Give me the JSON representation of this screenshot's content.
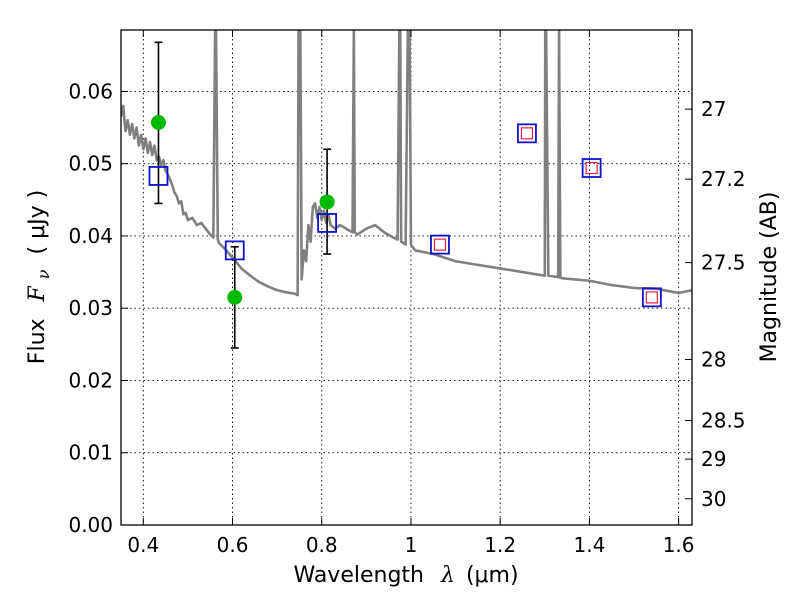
{
  "colors": {
    "model_line": "#808080",
    "model_square": "#1010cc",
    "photometry_square": "#1010cc",
    "photometry_inner": "#dd2244",
    "observed_point": "#00bb00",
    "error_bar": "#000000",
    "grid": "#000000"
  },
  "chart_data": {
    "type": "line",
    "xlabel": "Wavelength",
    "xlabel_symbol": "λ",
    "xlabel_unit": "(μm)",
    "ylabel": "Flux",
    "ylabel_symbol": "F",
    "ylabel_subscript": "ν",
    "ylabel_unit": "( μJy )",
    "y2label": "Magnitude (AB)",
    "xlim": [
      0.35,
      1.63
    ],
    "ylim": [
      0.0,
      0.0685
    ],
    "grid": true,
    "x_ticks": [
      {
        "value": 0.4,
        "label": "0.4"
      },
      {
        "value": 0.6,
        "label": "0.6"
      },
      {
        "value": 0.8,
        "label": "0.8"
      },
      {
        "value": 1.0,
        "label": "1"
      },
      {
        "value": 1.2,
        "label": "1.2"
      },
      {
        "value": 1.4,
        "label": "1.4"
      },
      {
        "value": 1.6,
        "label": "1.6"
      }
    ],
    "y_ticks": [
      {
        "value": 0.0,
        "label": "0.00"
      },
      {
        "value": 0.01,
        "label": "0.01"
      },
      {
        "value": 0.02,
        "label": "0.02"
      },
      {
        "value": 0.03,
        "label": "0.03"
      },
      {
        "value": 0.04,
        "label": "0.04"
      },
      {
        "value": 0.05,
        "label": "0.05"
      },
      {
        "value": 0.06,
        "label": "0.06"
      }
    ],
    "y2_ticks": [
      {
        "value": 27,
        "label": "27"
      },
      {
        "value": 27.2,
        "label": "27.2"
      },
      {
        "value": 27.5,
        "label": "27.5"
      },
      {
        "value": 28,
        "label": "28"
      },
      {
        "value": 28.5,
        "label": "28.5"
      },
      {
        "value": 29,
        "label": "29"
      },
      {
        "value": 30,
        "label": "30"
      }
    ],
    "series": [
      {
        "type": "line",
        "x": [
          0.35,
          0.355,
          0.36,
          0.365,
          0.37,
          0.375,
          0.38,
          0.385,
          0.39,
          0.395,
          0.4,
          0.405,
          0.41,
          0.415,
          0.42,
          0.425,
          0.43,
          0.435,
          0.44,
          0.445,
          0.45,
          0.455,
          0.46,
          0.465,
          0.47,
          0.475,
          0.48,
          0.485,
          0.49,
          0.495,
          0.5,
          0.51,
          0.52,
          0.53,
          0.54,
          0.55,
          0.557,
          0.561,
          0.562,
          0.563,
          0.567,
          0.57,
          0.58,
          0.6,
          0.62,
          0.64,
          0.66,
          0.68,
          0.7,
          0.72,
          0.74,
          0.746,
          0.748,
          0.75,
          0.752,
          0.755,
          0.76,
          0.765,
          0.77,
          0.775,
          0.78,
          0.785,
          0.79,
          0.795,
          0.8,
          0.805,
          0.81,
          0.815,
          0.82,
          0.83,
          0.84,
          0.85,
          0.86,
          0.869,
          0.872,
          0.874,
          0.88,
          0.9,
          0.92,
          0.94,
          0.96,
          0.97,
          0.974,
          0.976,
          0.978,
          0.984,
          0.988,
          0.993,
          0.995,
          0.997,
          1.0,
          1.002,
          1.01,
          1.05,
          1.1,
          1.15,
          1.2,
          1.25,
          1.3,
          1.301,
          1.303,
          1.308,
          1.33,
          1.332,
          1.335,
          1.345,
          1.4,
          1.45,
          1.5,
          1.55,
          1.6,
          1.63
        ],
        "y": [
          0.0565,
          0.058,
          0.0545,
          0.056,
          0.054,
          0.0555,
          0.0535,
          0.055,
          0.0525,
          0.054,
          0.052,
          0.0535,
          0.0515,
          0.053,
          0.0512,
          0.0525,
          0.0505,
          0.051,
          0.0498,
          0.0505,
          0.049,
          0.0485,
          0.0478,
          0.047,
          0.046,
          0.0455,
          0.0445,
          0.0448,
          0.043,
          0.0432,
          0.0422,
          0.0425,
          0.0415,
          0.0418,
          0.041,
          0.0402,
          0.0398,
          0.0685,
          0.0685,
          0.0685,
          0.0395,
          0.039,
          0.0384,
          0.037,
          0.0355,
          0.0345,
          0.0336,
          0.033,
          0.0325,
          0.0322,
          0.032,
          0.0318,
          0.0685,
          0.0685,
          0.0685,
          0.034,
          0.038,
          0.0365,
          0.0415,
          0.0392,
          0.044,
          0.0445,
          0.0425,
          0.044,
          0.0422,
          0.0435,
          0.0418,
          0.043,
          0.0415,
          0.041,
          0.0415,
          0.0412,
          0.0408,
          0.0405,
          0.0685,
          0.0405,
          0.0402,
          0.041,
          0.0415,
          0.0405,
          0.0398,
          0.0395,
          0.0685,
          0.0685,
          0.0392,
          0.039,
          0.0388,
          0.0685,
          0.0685,
          0.0685,
          0.0388,
          0.0386,
          0.038,
          0.0375,
          0.0365,
          0.036,
          0.0355,
          0.035,
          0.0345,
          0.0685,
          0.0685,
          0.0345,
          0.0343,
          0.0685,
          0.0342,
          0.0341,
          0.0338,
          0.0332,
          0.0328,
          0.0327,
          0.0321,
          0.0325
        ]
      },
      {
        "type": "model_squares",
        "points": [
          [
            0.434,
            0.0483
          ],
          [
            0.605,
            0.038
          ],
          [
            0.812,
            0.0418
          ],
          [
            1.065,
            0.0388
          ],
          [
            1.26,
            0.0542
          ],
          [
            1.405,
            0.0494
          ],
          [
            1.54,
            0.0315
          ]
        ]
      },
      {
        "type": "photometry_squares",
        "points": [
          [
            1.065,
            0.0388
          ],
          [
            1.26,
            0.0542
          ],
          [
            1.405,
            0.0494
          ],
          [
            1.54,
            0.0315
          ]
        ]
      },
      {
        "type": "observed",
        "points": [
          {
            "x": 0.434,
            "y": 0.0557,
            "err_low": 0.0445,
            "err_high": 0.0668
          },
          {
            "x": 0.605,
            "y": 0.0315,
            "err_low": 0.0245,
            "err_high": 0.0385
          },
          {
            "x": 0.812,
            "y": 0.0447,
            "err_low": 0.0375,
            "err_high": 0.052
          }
        ]
      }
    ]
  }
}
